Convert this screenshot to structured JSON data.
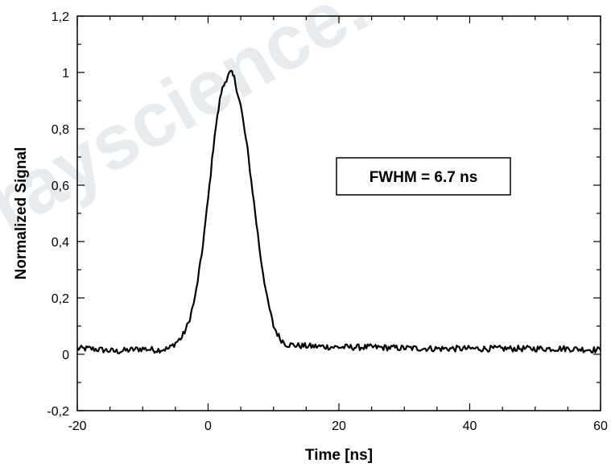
{
  "watermark": "rayscience.",
  "chart_data": {
    "type": "line",
    "title": "",
    "xlabel": "Time [ns]",
    "ylabel": "Normalized Signal",
    "xlim": [
      -20,
      60
    ],
    "ylim": [
      -0.2,
      1.2
    ],
    "x_ticks": [
      -20,
      0,
      20,
      40,
      60
    ],
    "x_tick_labels": [
      "-20",
      "0",
      "20",
      "40",
      "60"
    ],
    "y_ticks": [
      -0.2,
      0,
      0.2,
      0.4,
      0.6,
      0.8,
      1,
      1.2
    ],
    "y_tick_labels": [
      "-0,2",
      "0",
      "0,2",
      "0,4",
      "0,6",
      "0,8",
      "1",
      "1,2"
    ],
    "grid": false,
    "legend": "none",
    "annotation": "FWHM = 6.7 ns",
    "series": [
      {
        "color": "#000000",
        "x": [
          -20,
          -18,
          -16,
          -14,
          -12,
          -10,
          -8,
          -6,
          -5,
          -4,
          -3,
          -2,
          -1,
          0,
          1,
          2,
          3,
          3.5,
          4,
          5,
          6,
          7,
          8,
          9,
          10,
          11,
          12,
          14,
          16,
          18,
          20,
          25,
          30,
          35,
          40,
          45,
          50,
          55,
          60
        ],
        "y": [
          0.02,
          0.02,
          0.015,
          0.01,
          0.015,
          0.02,
          0.015,
          0.02,
          0.04,
          0.06,
          0.11,
          0.2,
          0.35,
          0.55,
          0.78,
          0.93,
          0.99,
          1.0,
          0.98,
          0.88,
          0.73,
          0.54,
          0.35,
          0.2,
          0.1,
          0.055,
          0.035,
          0.03,
          0.028,
          0.027,
          0.025,
          0.025,
          0.022,
          0.02,
          0.02,
          0.02,
          0.02,
          0.02,
          0.015
        ]
      }
    ]
  }
}
